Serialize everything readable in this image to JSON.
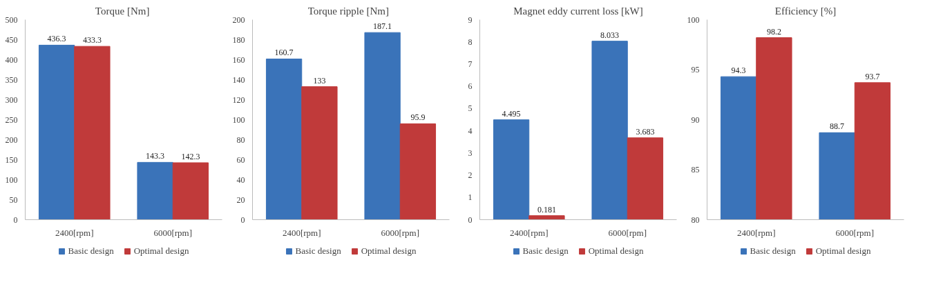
{
  "chart_data": [
    {
      "type": "bar",
      "title": "Torque  [Nm]",
      "categories": [
        "2400[rpm]",
        "6000[rpm]"
      ],
      "series": [
        {
          "name": "Basic design",
          "color": "#3a73b9",
          "values": [
            436.3,
            143.3
          ]
        },
        {
          "name": "Optimal design",
          "color": "#c03a3a",
          "values": [
            433.3,
            142.3
          ]
        }
      ],
      "ylim": [
        0,
        500
      ],
      "yticks": [
        0,
        50,
        100,
        150,
        200,
        250,
        300,
        350,
        400,
        450,
        500
      ],
      "data_labels": true,
      "legend": "bottom",
      "grid": false
    },
    {
      "type": "bar",
      "title": "Torque  ripple  [Nm]",
      "categories": [
        "2400[rpm]",
        "6000[rpm]"
      ],
      "series": [
        {
          "name": "Basic design",
          "color": "#3a73b9",
          "values": [
            160.7,
            187.1
          ]
        },
        {
          "name": "Optimal design",
          "color": "#c03a3a",
          "values": [
            133,
            95.9
          ]
        }
      ],
      "ylim": [
        0,
        200
      ],
      "yticks": [
        0,
        20,
        40,
        60,
        80,
        100,
        120,
        140,
        160,
        180,
        200
      ],
      "data_labels": true,
      "legend": "bottom",
      "grid": false
    },
    {
      "type": "bar",
      "title": "Magnet eddy current loss [kW]",
      "categories": [
        "2400[rpm]",
        "6000[rpm]"
      ],
      "series": [
        {
          "name": "Basic design",
          "color": "#3a73b9",
          "values": [
            4.495,
            8.033
          ]
        },
        {
          "name": "Optimal design",
          "color": "#c03a3a",
          "values": [
            0.181,
            3.683
          ]
        }
      ],
      "ylim": [
        0,
        9
      ],
      "yticks": [
        0,
        1,
        2,
        3,
        4,
        5,
        6,
        7,
        8,
        9
      ],
      "data_labels": true,
      "legend": "bottom",
      "grid": false
    },
    {
      "type": "bar",
      "title": "Efficiency [%]",
      "categories": [
        "2400[rpm]",
        "6000[rpm]"
      ],
      "series": [
        {
          "name": "Basic design",
          "color": "#3a73b9",
          "values": [
            94.3,
            88.7
          ]
        },
        {
          "name": "Optimal design",
          "color": "#c03a3a",
          "values": [
            98.2,
            93.7
          ]
        }
      ],
      "ylim": [
        80,
        100
      ],
      "yticks": [
        80,
        85,
        90,
        95,
        100
      ],
      "data_labels": true,
      "legend": "bottom",
      "grid": false
    }
  ]
}
